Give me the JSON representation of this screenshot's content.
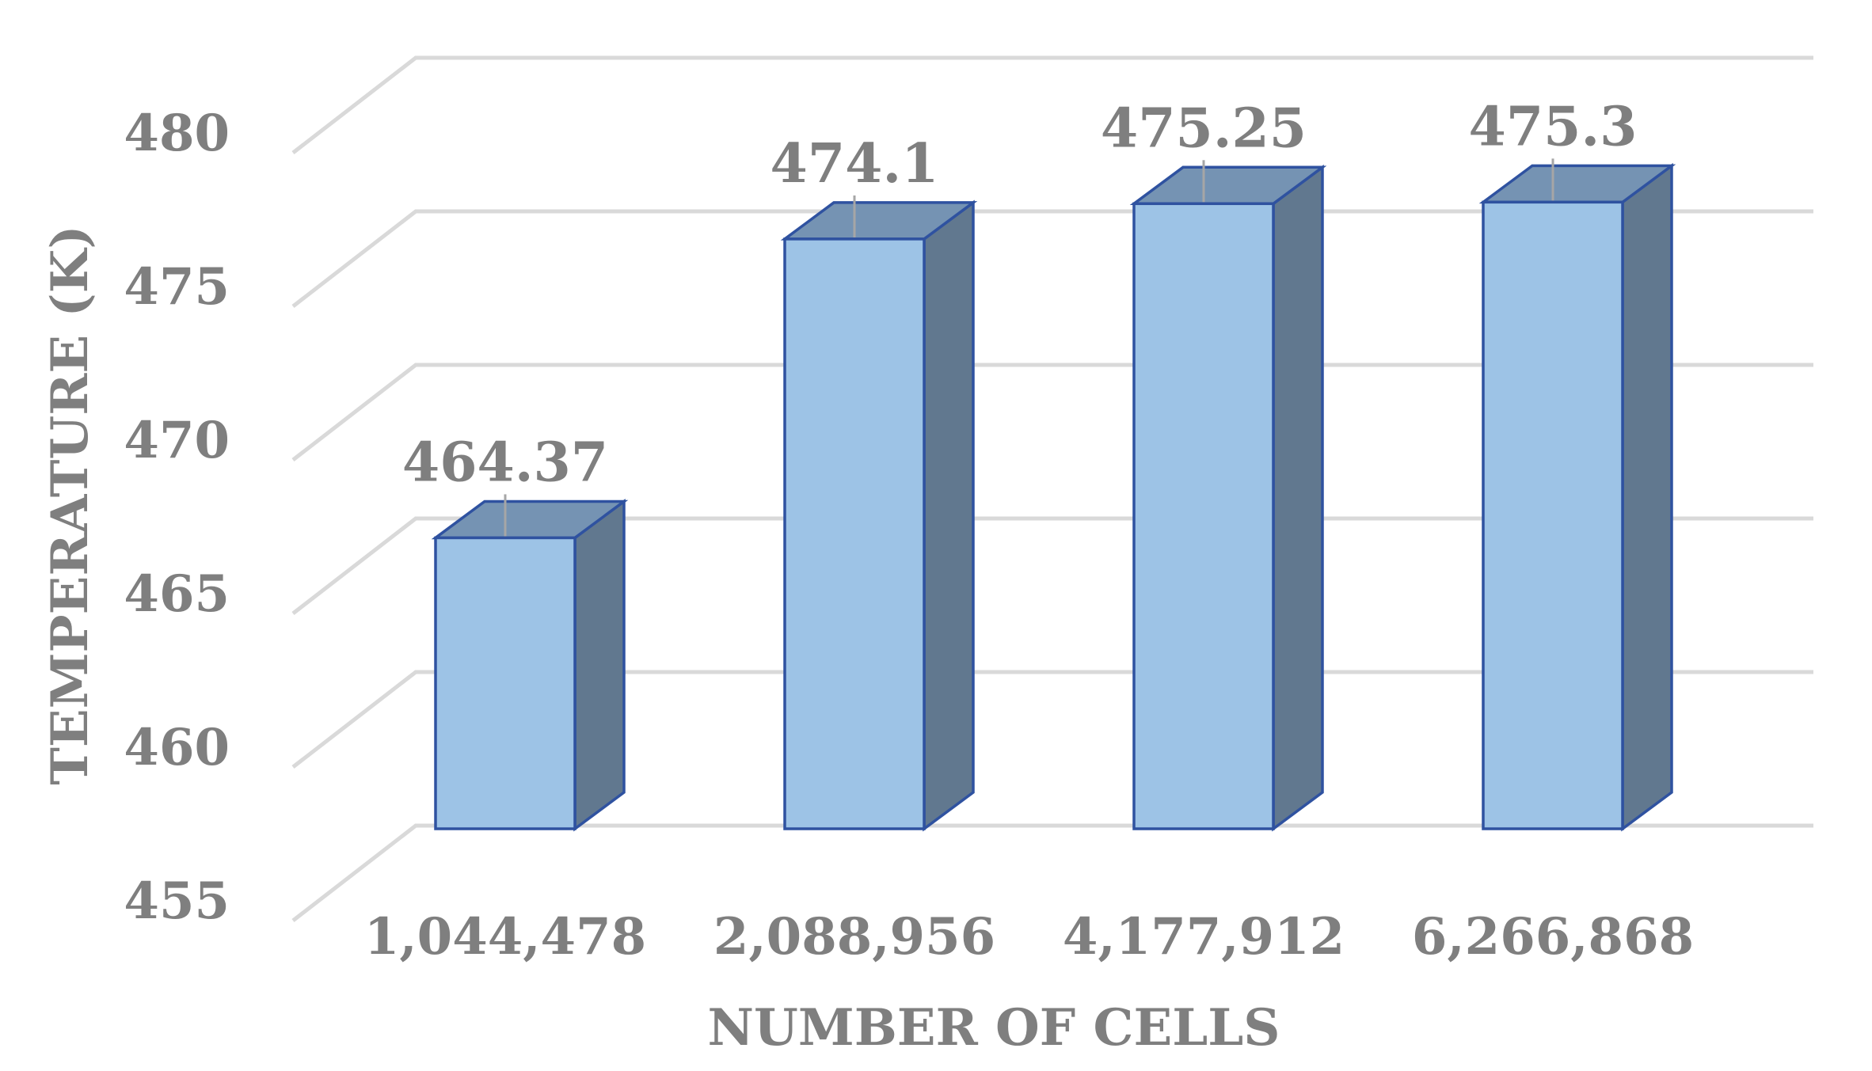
{
  "chart_data": {
    "type": "bar",
    "style": "3d-column",
    "categories": [
      "1,044,478",
      "2,088,956",
      "4,177,912",
      "6,266,868"
    ],
    "values": [
      464.37,
      474.1,
      475.25,
      475.3
    ],
    "data_labels": [
      "464.37",
      "474.1",
      "475.25",
      "475.3"
    ],
    "xlabel": "NUMBER OF CELLS",
    "ylabel": "TEMPERATURE (K)",
    "ylim": [
      455,
      480
    ],
    "yticks": [
      "455",
      "460",
      "465",
      "470",
      "475",
      "480"
    ],
    "grid": true,
    "legend": "none",
    "colors": {
      "bar_front": "#9dc3e6",
      "bar_top": "#7593b3",
      "bar_side": "#61788f",
      "bar_outline": "#2f52a0",
      "grid": "#d9d9d9",
      "text": "#7f7f7f"
    }
  }
}
